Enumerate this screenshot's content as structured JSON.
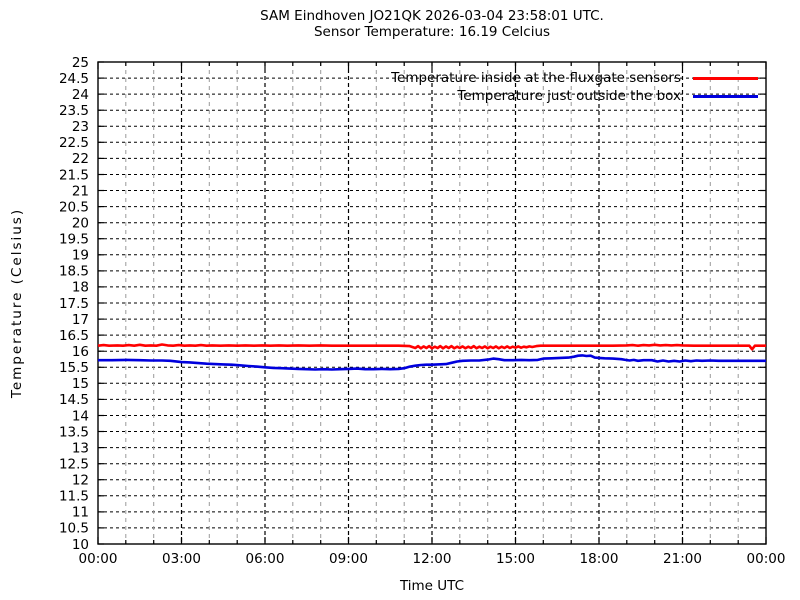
{
  "chart_data": {
    "type": "line",
    "title": "SAM Eindhoven JO21QK 2026-03-04 23:58:01 UTC.",
    "subtitle": "Sensor Temperature: 16.19 Celcius",
    "xlabel": "Time UTC",
    "ylabel": "Temperature (Celsius)",
    "xlim_hours": [
      0,
      24
    ],
    "ylim": [
      10,
      25
    ],
    "y_tick_step": 0.5,
    "x_major_tick_hours": [
      0,
      3,
      6,
      9,
      12,
      15,
      18,
      21,
      24
    ],
    "x_tick_labels": [
      "00:00",
      "03:00",
      "06:00",
      "09:00",
      "12:00",
      "15:00",
      "18:00",
      "21:00",
      "00:00"
    ],
    "x_minor_step_hours": 1,
    "grid": true,
    "legend_position": "top-right-inside",
    "colors": {
      "axis": "#000000",
      "grid_major": "#000000",
      "grid_minor": "#9a9a9a"
    },
    "series": [
      {
        "name": "Temperature inside at the fluxgate sensors",
        "color": "#ff0000",
        "points": [
          [
            0,
            16.17
          ],
          [
            0.2,
            16.19
          ],
          [
            0.4,
            16.17
          ],
          [
            0.7,
            16.18
          ],
          [
            0.9,
            16.17
          ],
          [
            1.1,
            16.19
          ],
          [
            1.3,
            16.17
          ],
          [
            1.5,
            16.2
          ],
          [
            1.7,
            16.17
          ],
          [
            1.9,
            16.18
          ],
          [
            2.1,
            16.17
          ],
          [
            2.3,
            16.21
          ],
          [
            2.5,
            16.18
          ],
          [
            2.7,
            16.17
          ],
          [
            2.9,
            16.19
          ],
          [
            3.1,
            16.17
          ],
          [
            3.3,
            16.18
          ],
          [
            3.5,
            16.17
          ],
          [
            3.7,
            16.19
          ],
          [
            3.9,
            16.17
          ],
          [
            4.1,
            16.18
          ],
          [
            4.4,
            16.17
          ],
          [
            4.7,
            16.18
          ],
          [
            5,
            16.17
          ],
          [
            5.3,
            16.18
          ],
          [
            5.6,
            16.17
          ],
          [
            5.9,
            16.18
          ],
          [
            6.2,
            16.17
          ],
          [
            6.5,
            16.18
          ],
          [
            6.8,
            16.17
          ],
          [
            7.2,
            16.18
          ],
          [
            7.6,
            16.17
          ],
          [
            8,
            16.18
          ],
          [
            8.4,
            16.17
          ],
          [
            9,
            16.17
          ],
          [
            9.6,
            16.17
          ],
          [
            10.2,
            16.17
          ],
          [
            10.8,
            16.17
          ],
          [
            11.2,
            16.16
          ],
          [
            11.4,
            16.1
          ],
          [
            11.5,
            16.16
          ],
          [
            11.6,
            16.09
          ],
          [
            11.7,
            16.15
          ],
          [
            11.8,
            16.1
          ],
          [
            11.9,
            16.16
          ],
          [
            12,
            16.09
          ],
          [
            12.1,
            16.14
          ],
          [
            12.2,
            16.1
          ],
          [
            12.3,
            16.16
          ],
          [
            12.4,
            16.09
          ],
          [
            12.5,
            16.15
          ],
          [
            12.6,
            16.1
          ],
          [
            12.7,
            16.16
          ],
          [
            12.8,
            16.09
          ],
          [
            12.9,
            16.14
          ],
          [
            13,
            16.1
          ],
          [
            13.1,
            16.15
          ],
          [
            13.2,
            16.09
          ],
          [
            13.3,
            16.14
          ],
          [
            13.4,
            16.1
          ],
          [
            13.5,
            16.16
          ],
          [
            13.6,
            16.09
          ],
          [
            13.7,
            16.14
          ],
          [
            13.8,
            16.1
          ],
          [
            13.9,
            16.15
          ],
          [
            14,
            16.09
          ],
          [
            14.1,
            16.14
          ],
          [
            14.2,
            16.1
          ],
          [
            14.3,
            16.15
          ],
          [
            14.4,
            16.09
          ],
          [
            14.5,
            16.14
          ],
          [
            14.6,
            16.1
          ],
          [
            14.7,
            16.15
          ],
          [
            14.8,
            16.1
          ],
          [
            14.9,
            16.14
          ],
          [
            15,
            16.11
          ],
          [
            15.1,
            16.15
          ],
          [
            15.2,
            16.11
          ],
          [
            15.3,
            16.14
          ],
          [
            15.4,
            16.12
          ],
          [
            15.5,
            16.15
          ],
          [
            15.6,
            16.13
          ],
          [
            15.75,
            16.16
          ],
          [
            15.9,
            16.17
          ],
          [
            16.5,
            16.17
          ],
          [
            17,
            16.17
          ],
          [
            17.5,
            16.17
          ],
          [
            18,
            16.17
          ],
          [
            18.5,
            16.17
          ],
          [
            19,
            16.18
          ],
          [
            19.2,
            16.19
          ],
          [
            19.4,
            16.17
          ],
          [
            19.6,
            16.19
          ],
          [
            19.8,
            16.18
          ],
          [
            20,
            16.2
          ],
          [
            20.2,
            16.18
          ],
          [
            20.4,
            16.19
          ],
          [
            20.6,
            16.18
          ],
          [
            20.8,
            16.19
          ],
          [
            21,
            16.18
          ],
          [
            21.4,
            16.17
          ],
          [
            21.8,
            16.17
          ],
          [
            22.2,
            16.17
          ],
          [
            22.6,
            16.17
          ],
          [
            23,
            16.17
          ],
          [
            23.4,
            16.17
          ],
          [
            23.5,
            16.06
          ],
          [
            23.6,
            16.17
          ],
          [
            24,
            16.17
          ]
        ]
      },
      {
        "name": "Temperature just outside the box",
        "color": "#0000dd",
        "points": [
          [
            0,
            15.72
          ],
          [
            0.5,
            15.72
          ],
          [
            1,
            15.73
          ],
          [
            1.5,
            15.72
          ],
          [
            1.9,
            15.71
          ],
          [
            2.3,
            15.71
          ],
          [
            2.6,
            15.7
          ],
          [
            3,
            15.66
          ],
          [
            3.3,
            15.65
          ],
          [
            3.6,
            15.63
          ],
          [
            3.9,
            15.61
          ],
          [
            4.2,
            15.6
          ],
          [
            4.5,
            15.59
          ],
          [
            4.8,
            15.58
          ],
          [
            5.1,
            15.56
          ],
          [
            5.4,
            15.54
          ],
          [
            5.7,
            15.52
          ],
          [
            6,
            15.5
          ],
          [
            6.3,
            15.48
          ],
          [
            6.6,
            15.47
          ],
          [
            6.9,
            15.46
          ],
          [
            7.2,
            15.45
          ],
          [
            7.5,
            15.44
          ],
          [
            7.8,
            15.43
          ],
          [
            8.1,
            15.44
          ],
          [
            8.4,
            15.43
          ],
          [
            8.7,
            15.44
          ],
          [
            9,
            15.45
          ],
          [
            9.3,
            15.46
          ],
          [
            9.6,
            15.44
          ],
          [
            9.9,
            15.44
          ],
          [
            10.2,
            15.45
          ],
          [
            10.5,
            15.44
          ],
          [
            10.8,
            15.45
          ],
          [
            11,
            15.47
          ],
          [
            11.2,
            15.52
          ],
          [
            11.4,
            15.55
          ],
          [
            11.6,
            15.57
          ],
          [
            11.8,
            15.58
          ],
          [
            12,
            15.58
          ],
          [
            12.2,
            15.59
          ],
          [
            12.5,
            15.6
          ],
          [
            12.7,
            15.64
          ],
          [
            12.9,
            15.68
          ],
          [
            13.1,
            15.7
          ],
          [
            13.4,
            15.71
          ],
          [
            13.7,
            15.71
          ],
          [
            14,
            15.74
          ],
          [
            14.2,
            15.77
          ],
          [
            14.4,
            15.75
          ],
          [
            14.6,
            15.72
          ],
          [
            14.9,
            15.72
          ],
          [
            15.2,
            15.73
          ],
          [
            15.5,
            15.72
          ],
          [
            15.8,
            15.73
          ],
          [
            16,
            15.77
          ],
          [
            16.3,
            15.78
          ],
          [
            16.6,
            15.79
          ],
          [
            16.9,
            15.8
          ],
          [
            17.1,
            15.83
          ],
          [
            17.25,
            15.86
          ],
          [
            17.4,
            15.87
          ],
          [
            17.55,
            15.85
          ],
          [
            17.7,
            15.86
          ],
          [
            17.85,
            15.8
          ],
          [
            18,
            15.79
          ],
          [
            18.2,
            15.78
          ],
          [
            18.5,
            15.77
          ],
          [
            18.8,
            15.75
          ],
          [
            18.95,
            15.73
          ],
          [
            19.1,
            15.71
          ],
          [
            19.25,
            15.73
          ],
          [
            19.4,
            15.7
          ],
          [
            19.6,
            15.72
          ],
          [
            19.9,
            15.72
          ],
          [
            20.1,
            15.68
          ],
          [
            20.3,
            15.71
          ],
          [
            20.5,
            15.68
          ],
          [
            20.7,
            15.7
          ],
          [
            20.9,
            15.68
          ],
          [
            21.1,
            15.71
          ],
          [
            21.3,
            15.69
          ],
          [
            21.5,
            15.71
          ],
          [
            21.7,
            15.7
          ],
          [
            22,
            15.71
          ],
          [
            22.3,
            15.7
          ],
          [
            22.7,
            15.7
          ],
          [
            23,
            15.7
          ],
          [
            23.5,
            15.7
          ],
          [
            24,
            15.7
          ]
        ]
      }
    ]
  }
}
